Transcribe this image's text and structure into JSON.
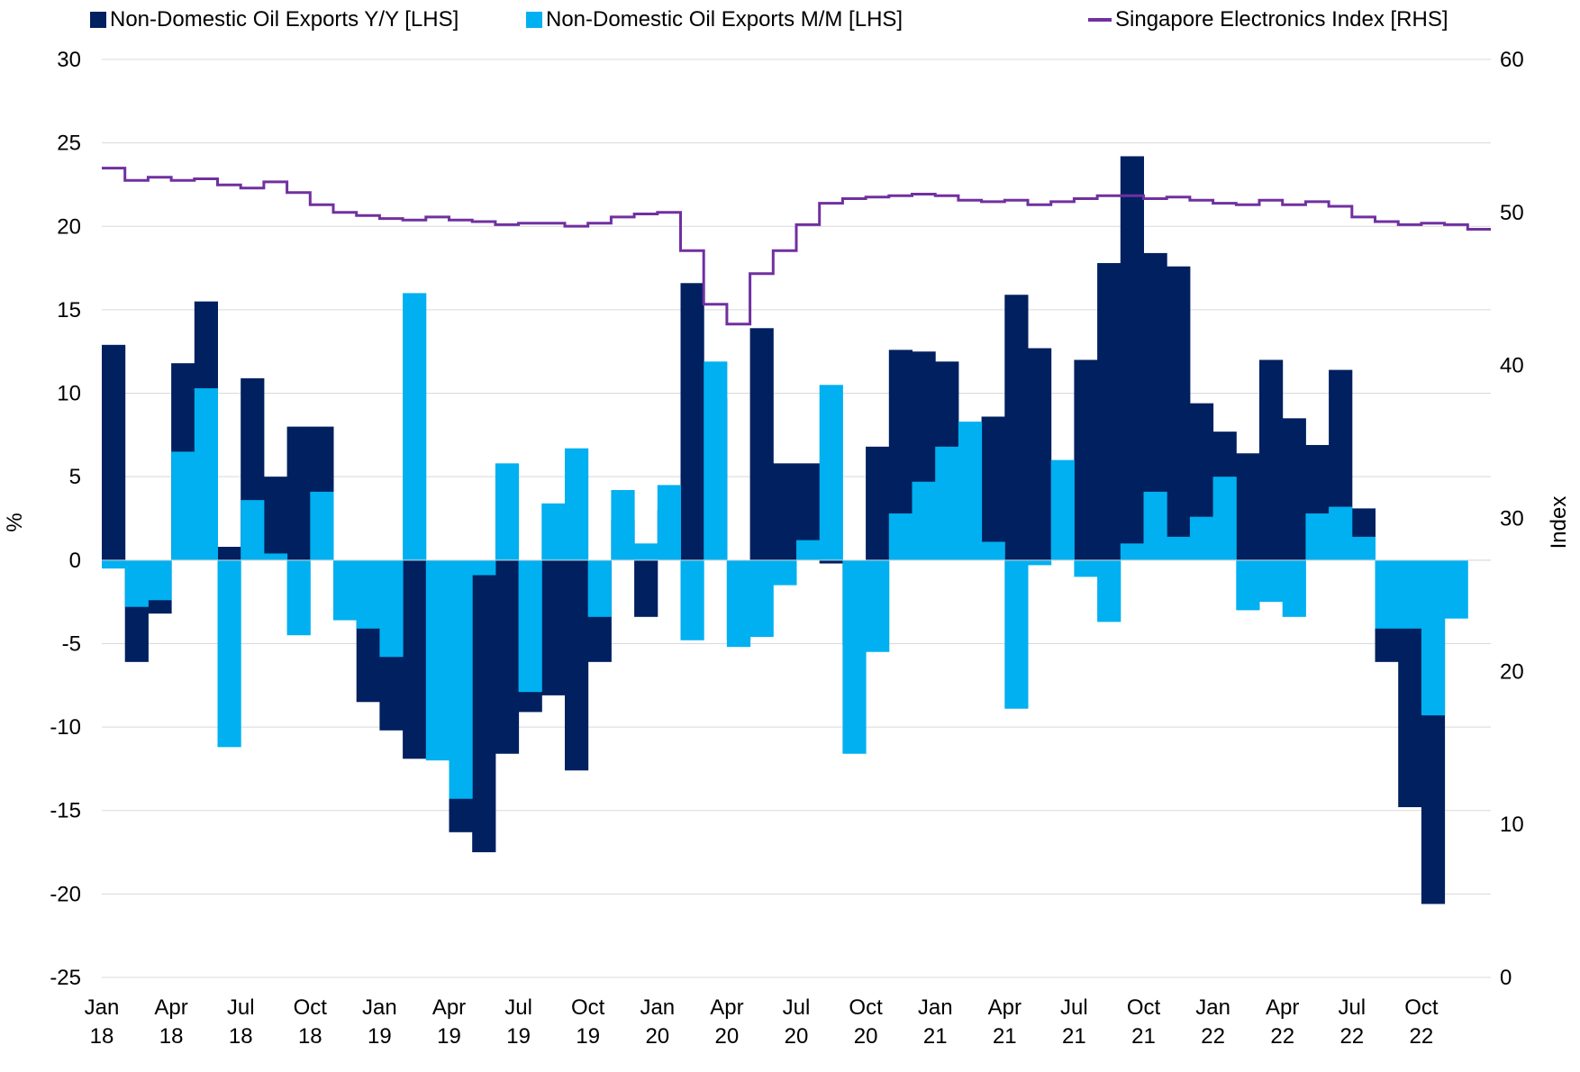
{
  "chart_data": {
    "type": "bar",
    "title": "",
    "legend_position": "top",
    "grid": true,
    "ylabel_left": "%",
    "ylabel_right": "Index",
    "ylim_left": [
      -25,
      30
    ],
    "ylim_right": [
      0,
      60
    ],
    "yticks_left": [
      "30",
      "25",
      "20",
      "15",
      "10",
      "5",
      "0",
      "-5",
      "-10",
      "-15",
      "-20",
      "-25"
    ],
    "yticks_right": [
      "60",
      "50",
      "40",
      "30",
      "20",
      "10",
      "0"
    ],
    "yticks_left_values": [
      30,
      25,
      20,
      15,
      10,
      5,
      0,
      -5,
      -10,
      -15,
      -20,
      -25
    ],
    "yticks_right_values": [
      60,
      50,
      40,
      30,
      20,
      10,
      0
    ],
    "x_tick_labels": [
      {
        "month": "Jan",
        "year": "18",
        "index": 0
      },
      {
        "month": "Apr",
        "year": "18",
        "index": 3
      },
      {
        "month": "Jul",
        "year": "18",
        "index": 6
      },
      {
        "month": "Oct",
        "year": "18",
        "index": 9
      },
      {
        "month": "Jan",
        "year": "19",
        "index": 12
      },
      {
        "month": "Apr",
        "year": "19",
        "index": 15
      },
      {
        "month": "Jul",
        "year": "19",
        "index": 18
      },
      {
        "month": "Oct",
        "year": "19",
        "index": 21
      },
      {
        "month": "Jan",
        "year": "20",
        "index": 24
      },
      {
        "month": "Apr",
        "year": "20",
        "index": 27
      },
      {
        "month": "Jul",
        "year": "20",
        "index": 30
      },
      {
        "month": "Oct",
        "year": "20",
        "index": 33
      },
      {
        "month": "Jan",
        "year": "21",
        "index": 36
      },
      {
        "month": "Apr",
        "year": "21",
        "index": 39
      },
      {
        "month": "Jul",
        "year": "21",
        "index": 42
      },
      {
        "month": "Oct",
        "year": "21",
        "index": 45
      },
      {
        "month": "Jan",
        "year": "22",
        "index": 48
      },
      {
        "month": "Apr",
        "year": "22",
        "index": 51
      },
      {
        "month": "Jul",
        "year": "22",
        "index": 54
      },
      {
        "month": "Oct",
        "year": "22",
        "index": 57
      }
    ],
    "categories": [
      "2018-01",
      "2018-02",
      "2018-03",
      "2018-04",
      "2018-05",
      "2018-06",
      "2018-07",
      "2018-08",
      "2018-09",
      "2018-10",
      "2018-11",
      "2018-12",
      "2019-01",
      "2019-02",
      "2019-03",
      "2019-04",
      "2019-05",
      "2019-06",
      "2019-07",
      "2019-08",
      "2019-09",
      "2019-10",
      "2019-11",
      "2019-12",
      "2020-01",
      "2020-02",
      "2020-03",
      "2020-04",
      "2020-05",
      "2020-06",
      "2020-07",
      "2020-08",
      "2020-09",
      "2020-10",
      "2020-11",
      "2020-12",
      "2021-01",
      "2021-02",
      "2021-03",
      "2021-04",
      "2021-05",
      "2021-06",
      "2021-07",
      "2021-08",
      "2021-09",
      "2021-10",
      "2021-11",
      "2021-12",
      "2022-01",
      "2022-02",
      "2022-03",
      "2022-04",
      "2022-05",
      "2022-06",
      "2022-07",
      "2022-08",
      "2022-09",
      "2022-10",
      "2022-11",
      "2022-12"
    ],
    "series": [
      {
        "name": "Non-Domestic Oil Exports Y/Y [LHS]",
        "kind": "bar",
        "axis": "left",
        "color": "#002060",
        "values": [
          12.9,
          -6.1,
          -3.2,
          11.8,
          15.5,
          0.8,
          10.9,
          5.0,
          8.0,
          8.0,
          -3.0,
          -8.5,
          -10.2,
          -11.9,
          -10.1,
          -16.3,
          -17.5,
          -11.6,
          -9.1,
          -8.1,
          -12.6,
          -6.1,
          2.4,
          -3.4,
          3.0,
          16.6,
          9.7,
          -4.8,
          13.9,
          5.8,
          5.8,
          -0.2,
          -5.1,
          6.8,
          12.6,
          12.5,
          11.9,
          6.0,
          8.6,
          15.9,
          12.7,
          2.6,
          12.0,
          17.8,
          24.2,
          18.4,
          17.6,
          9.4,
          7.7,
          6.4,
          12.0,
          8.5,
          6.9,
          11.4,
          3.1,
          -6.1,
          -14.8,
          -20.6,
          0,
          0
        ]
      },
      {
        "name": "Non-Domestic Oil Exports M/M [LHS]",
        "kind": "bar",
        "axis": "left",
        "color": "#00B0F0",
        "values": [
          -0.5,
          -2.8,
          -2.4,
          6.5,
          10.3,
          -11.2,
          3.6,
          0.4,
          -4.5,
          4.1,
          -3.6,
          -4.1,
          -5.8,
          16.0,
          -12.0,
          -14.3,
          -0.9,
          5.8,
          -7.9,
          3.4,
          6.7,
          -3.4,
          4.2,
          1.0,
          4.5,
          -4.8,
          11.9,
          -5.2,
          -4.6,
          -1.5,
          1.2,
          10.5,
          -11.6,
          -5.5,
          2.8,
          4.7,
          6.8,
          8.3,
          1.1,
          -8.9,
          -0.3,
          6.0,
          -1.0,
          -3.7,
          1.0,
          4.1,
          1.4,
          2.6,
          5.0,
          -3.0,
          -2.5,
          -3.4,
          2.8,
          3.2,
          1.4,
          -4.1,
          -4.1,
          -9.3,
          -3.5,
          0
        ]
      },
      {
        "name": "Singapore Electronics Index [RHS]",
        "kind": "line",
        "axis": "right",
        "color": "#7030A0",
        "values": [
          52.9,
          52.1,
          52.3,
          52.1,
          52.2,
          51.8,
          51.6,
          52.0,
          51.3,
          50.5,
          50.0,
          49.8,
          49.6,
          49.5,
          49.7,
          49.5,
          49.4,
          49.2,
          49.3,
          49.3,
          49.1,
          49.3,
          49.7,
          49.9,
          50.0,
          47.5,
          44.0,
          42.7,
          46.0,
          47.5,
          49.2,
          50.6,
          50.9,
          51.0,
          51.1,
          51.2,
          51.1,
          50.8,
          50.7,
          50.8,
          50.5,
          50.7,
          50.9,
          51.1,
          51.1,
          50.9,
          51.0,
          50.8,
          50.6,
          50.5,
          50.8,
          50.5,
          50.7,
          50.4,
          49.7,
          49.4,
          49.2,
          49.3,
          49.2,
          48.9
        ]
      }
    ]
  }
}
